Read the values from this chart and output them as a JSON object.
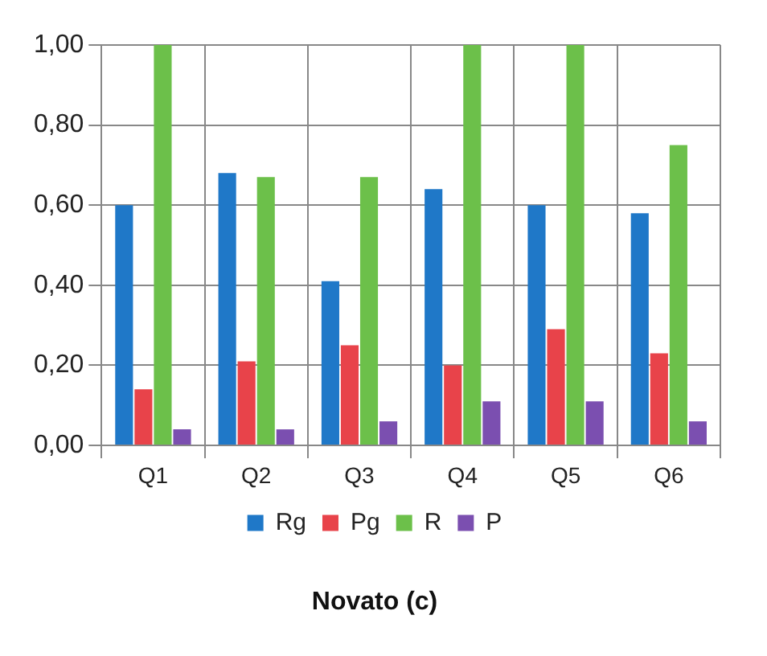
{
  "chart_data": {
    "type": "bar",
    "title": "Novato (c)",
    "categories": [
      "Q1",
      "Q2",
      "Q3",
      "Q4",
      "Q5",
      "Q6"
    ],
    "series": [
      {
        "name": "Rg",
        "color": "#1f78c8",
        "values": [
          0.6,
          0.68,
          0.41,
          0.64,
          0.6,
          0.58
        ]
      },
      {
        "name": "Pg",
        "color": "#e8434a",
        "values": [
          0.14,
          0.21,
          0.25,
          0.2,
          0.29,
          0.23
        ]
      },
      {
        "name": "R",
        "color": "#6cc04a",
        "values": [
          1.0,
          0.67,
          0.67,
          1.0,
          1.0,
          0.75
        ]
      },
      {
        "name": "P",
        "color": "#7b4fb0",
        "values": [
          0.04,
          0.04,
          0.06,
          0.11,
          0.11,
          0.06
        ]
      }
    ],
    "ylim": [
      0,
      1
    ],
    "yticks": [
      {
        "value": 0,
        "label": "0,00"
      },
      {
        "value": 0.2,
        "label": "0,20"
      },
      {
        "value": 0.4,
        "label": "0,40"
      },
      {
        "value": 0.6,
        "label": "0,60"
      },
      {
        "value": 0.8,
        "label": "0,80"
      },
      {
        "value": 1,
        "label": "1,00"
      }
    ],
    "grid": true,
    "legend": "bottom"
  }
}
